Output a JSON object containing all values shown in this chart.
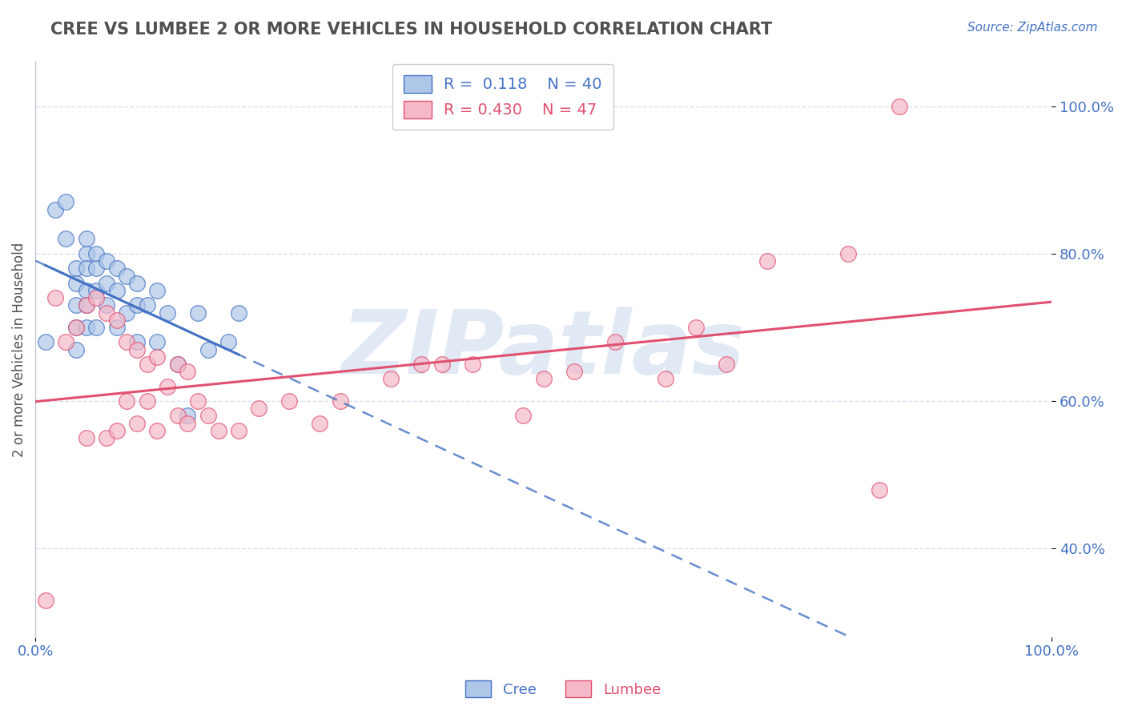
{
  "title": "CREE VS LUMBEE 2 OR MORE VEHICLES IN HOUSEHOLD CORRELATION CHART",
  "source_text": "Source: ZipAtlas.com",
  "ylabel": "2 or more Vehicles in Household",
  "cree_r": 0.118,
  "cree_n": 40,
  "lumbee_r": 0.43,
  "lumbee_n": 47,
  "cree_color": "#aec6e8",
  "lumbee_color": "#f5b8c8",
  "cree_line_color": "#4472c4",
  "lumbee_line_color": "#e05070",
  "axis_label_color": "#4472c4",
  "title_color": "#505050",
  "xlim": [
    0.0,
    1.0
  ],
  "ylim": [
    0.28,
    1.06
  ],
  "yticks": [
    0.4,
    0.6,
    0.8,
    1.0
  ],
  "ytick_labels": [
    "40.0%",
    "60.0%",
    "80.0%",
    "100.0%"
  ],
  "xticks": [
    0.0,
    1.0
  ],
  "xtick_labels": [
    "0.0%",
    "100.0%"
  ],
  "cree_x": [
    0.01,
    0.02,
    0.03,
    0.03,
    0.04,
    0.04,
    0.04,
    0.04,
    0.04,
    0.05,
    0.05,
    0.05,
    0.05,
    0.05,
    0.05,
    0.06,
    0.06,
    0.06,
    0.06,
    0.07,
    0.07,
    0.07,
    0.08,
    0.08,
    0.08,
    0.09,
    0.09,
    0.1,
    0.1,
    0.1,
    0.11,
    0.12,
    0.12,
    0.13,
    0.14,
    0.15,
    0.16,
    0.17,
    0.19,
    0.2
  ],
  "cree_y": [
    0.68,
    0.86,
    0.87,
    0.82,
    0.78,
    0.76,
    0.73,
    0.7,
    0.67,
    0.82,
    0.8,
    0.78,
    0.75,
    0.73,
    0.7,
    0.8,
    0.78,
    0.75,
    0.7,
    0.79,
    0.76,
    0.73,
    0.78,
    0.75,
    0.7,
    0.77,
    0.72,
    0.76,
    0.73,
    0.68,
    0.73,
    0.75,
    0.68,
    0.72,
    0.65,
    0.58,
    0.72,
    0.67,
    0.68,
    0.72
  ],
  "lumbee_x": [
    0.01,
    0.02,
    0.03,
    0.04,
    0.05,
    0.05,
    0.06,
    0.07,
    0.07,
    0.08,
    0.08,
    0.09,
    0.09,
    0.1,
    0.1,
    0.11,
    0.11,
    0.12,
    0.12,
    0.13,
    0.14,
    0.14,
    0.15,
    0.15,
    0.16,
    0.17,
    0.18,
    0.2,
    0.22,
    0.25,
    0.28,
    0.3,
    0.35,
    0.38,
    0.4,
    0.43,
    0.48,
    0.5,
    0.53,
    0.57,
    0.62,
    0.65,
    0.68,
    0.72,
    0.8,
    0.83,
    0.85
  ],
  "lumbee_y": [
    0.33,
    0.74,
    0.68,
    0.7,
    0.73,
    0.55,
    0.74,
    0.72,
    0.55,
    0.71,
    0.56,
    0.68,
    0.6,
    0.67,
    0.57,
    0.65,
    0.6,
    0.66,
    0.56,
    0.62,
    0.65,
    0.58,
    0.64,
    0.57,
    0.6,
    0.58,
    0.56,
    0.56,
    0.59,
    0.6,
    0.57,
    0.6,
    0.63,
    0.65,
    0.65,
    0.65,
    0.58,
    0.63,
    0.64,
    0.68,
    0.63,
    0.7,
    0.65,
    0.79,
    0.8,
    0.48,
    1.0
  ],
  "watermark": "ZIPatlas",
  "watermark_color": "#c8d8ec",
  "grid_color": "#d8e0ec",
  "background_color": "#ffffff"
}
